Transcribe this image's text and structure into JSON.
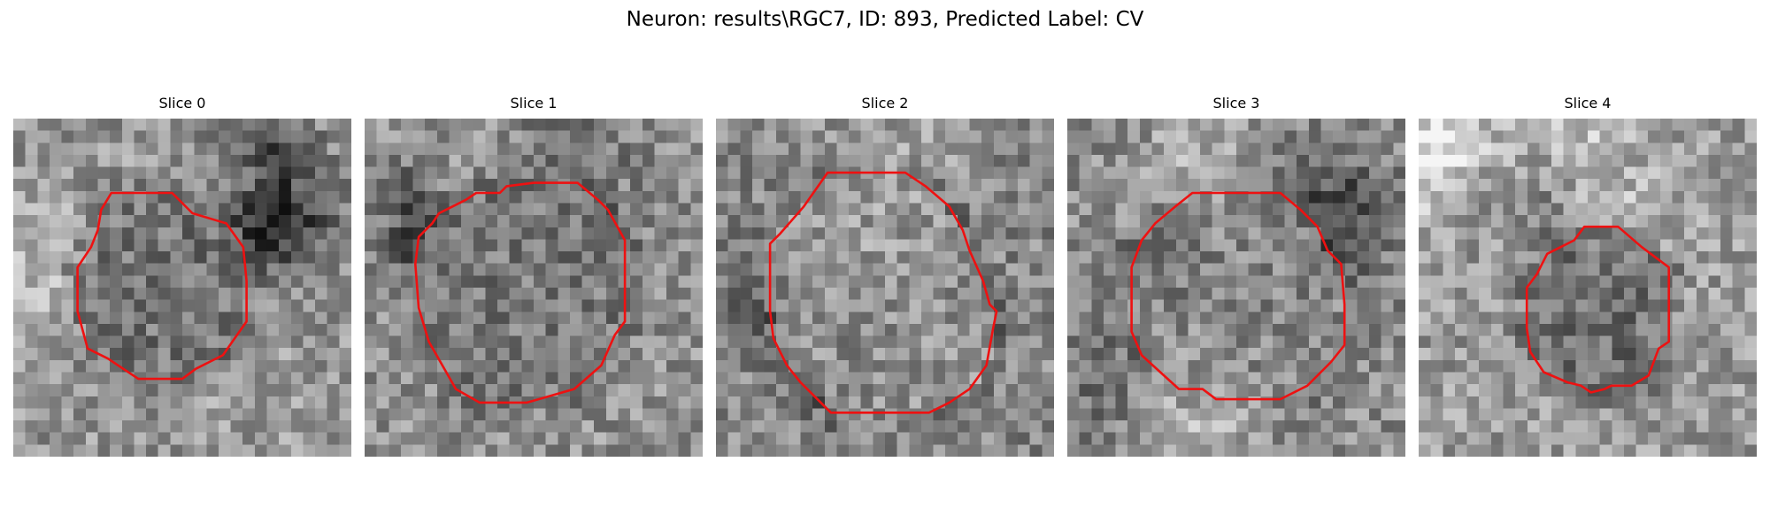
{
  "figure": {
    "title": "Neuron: results\\RGC7, ID: 893, Predicted Label: CV"
  },
  "colors": {
    "contour": "#ee1111",
    "background": "#ffffff"
  },
  "slices": [
    {
      "label": "Slice 0",
      "seed": 11,
      "base": 150,
      "cell_level": 100,
      "surround_dark": 70,
      "contour": [
        [
          0.29,
          0.22
        ],
        [
          0.38,
          0.22
        ],
        [
          0.47,
          0.22
        ],
        [
          0.53,
          0.28
        ],
        [
          0.63,
          0.31
        ],
        [
          0.68,
          0.38
        ],
        [
          0.69,
          0.48
        ],
        [
          0.69,
          0.6
        ],
        [
          0.62,
          0.7
        ],
        [
          0.54,
          0.74
        ],
        [
          0.5,
          0.77
        ],
        [
          0.37,
          0.77
        ],
        [
          0.28,
          0.71
        ],
        [
          0.22,
          0.68
        ],
        [
          0.19,
          0.57
        ],
        [
          0.19,
          0.44
        ],
        [
          0.23,
          0.38
        ],
        [
          0.25,
          0.33
        ],
        [
          0.26,
          0.27
        ]
      ]
    },
    {
      "label": "Slice 1",
      "seed": 23,
      "base": 145,
      "cell_level": 110,
      "surround_dark": 60,
      "contour": [
        [
          0.3,
          0.24
        ],
        [
          0.33,
          0.22
        ],
        [
          0.4,
          0.22
        ],
        [
          0.42,
          0.2
        ],
        [
          0.5,
          0.19
        ],
        [
          0.63,
          0.19
        ],
        [
          0.69,
          0.24
        ],
        [
          0.72,
          0.27
        ],
        [
          0.77,
          0.36
        ],
        [
          0.77,
          0.6
        ],
        [
          0.74,
          0.64
        ],
        [
          0.7,
          0.73
        ],
        [
          0.62,
          0.8
        ],
        [
          0.55,
          0.82
        ],
        [
          0.48,
          0.84
        ],
        [
          0.34,
          0.84
        ],
        [
          0.27,
          0.8
        ],
        [
          0.19,
          0.66
        ],
        [
          0.16,
          0.56
        ],
        [
          0.15,
          0.43
        ],
        [
          0.16,
          0.35
        ],
        [
          0.2,
          0.31
        ],
        [
          0.22,
          0.28
        ]
      ]
    },
    {
      "label": "Slice 2",
      "seed": 37,
      "base": 135,
      "cell_level": 150,
      "surround_dark": 65,
      "contour": [
        [
          0.33,
          0.16
        ],
        [
          0.56,
          0.16
        ],
        [
          0.62,
          0.2
        ],
        [
          0.69,
          0.26
        ],
        [
          0.73,
          0.33
        ],
        [
          0.75,
          0.39
        ],
        [
          0.79,
          0.48
        ],
        [
          0.81,
          0.55
        ],
        [
          0.83,
          0.57
        ],
        [
          0.82,
          0.62
        ],
        [
          0.8,
          0.73
        ],
        [
          0.75,
          0.8
        ],
        [
          0.69,
          0.84
        ],
        [
          0.63,
          0.87
        ],
        [
          0.57,
          0.87
        ],
        [
          0.34,
          0.87
        ],
        [
          0.3,
          0.83
        ],
        [
          0.25,
          0.78
        ],
        [
          0.21,
          0.73
        ],
        [
          0.17,
          0.65
        ],
        [
          0.16,
          0.57
        ],
        [
          0.16,
          0.37
        ],
        [
          0.19,
          0.34
        ],
        [
          0.26,
          0.26
        ]
      ]
    },
    {
      "label": "Slice 3",
      "seed": 51,
      "base": 140,
      "cell_level": 135,
      "surround_dark": 55,
      "contour": [
        [
          0.37,
          0.22
        ],
        [
          0.63,
          0.22
        ],
        [
          0.69,
          0.27
        ],
        [
          0.74,
          0.32
        ],
        [
          0.77,
          0.39
        ],
        [
          0.81,
          0.43
        ],
        [
          0.82,
          0.55
        ],
        [
          0.82,
          0.67
        ],
        [
          0.78,
          0.72
        ],
        [
          0.71,
          0.79
        ],
        [
          0.63,
          0.83
        ],
        [
          0.44,
          0.83
        ],
        [
          0.4,
          0.8
        ],
        [
          0.33,
          0.8
        ],
        [
          0.22,
          0.7
        ],
        [
          0.19,
          0.63
        ],
        [
          0.19,
          0.44
        ],
        [
          0.22,
          0.36
        ],
        [
          0.26,
          0.31
        ],
        [
          0.32,
          0.26
        ]
      ]
    },
    {
      "label": "Slice 4",
      "seed": 67,
      "base": 155,
      "cell_level": 90,
      "surround_dark": 75,
      "contour": [
        [
          0.49,
          0.32
        ],
        [
          0.59,
          0.32
        ],
        [
          0.66,
          0.38
        ],
        [
          0.74,
          0.44
        ],
        [
          0.74,
          0.66
        ],
        [
          0.71,
          0.68
        ],
        [
          0.68,
          0.76
        ],
        [
          0.63,
          0.79
        ],
        [
          0.57,
          0.79
        ],
        [
          0.55,
          0.8
        ],
        [
          0.51,
          0.81
        ],
        [
          0.48,
          0.79
        ],
        [
          0.44,
          0.78
        ],
        [
          0.37,
          0.75
        ],
        [
          0.33,
          0.69
        ],
        [
          0.32,
          0.62
        ],
        [
          0.32,
          0.5
        ],
        [
          0.35,
          0.46
        ],
        [
          0.36,
          0.44
        ],
        [
          0.38,
          0.4
        ],
        [
          0.42,
          0.38
        ],
        [
          0.46,
          0.36
        ]
      ]
    }
  ]
}
